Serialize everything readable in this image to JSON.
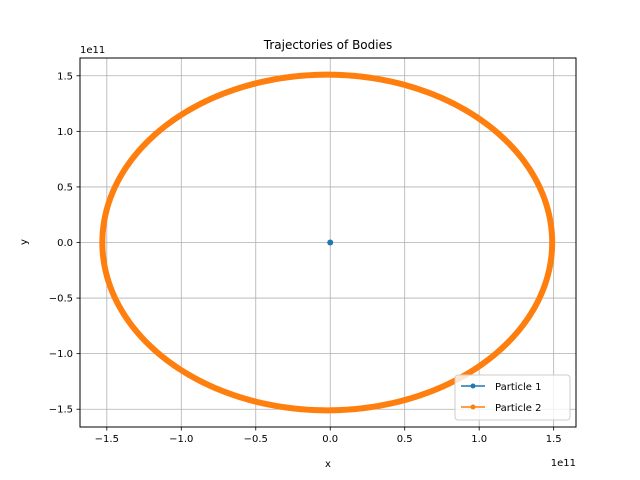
{
  "chart_data": {
    "type": "line",
    "title": "Trajectories of Bodies",
    "xlabel": "x",
    "ylabel": "y",
    "x_offset_label": "1e11",
    "y_offset_label": "1e11",
    "xlim": [
      -168000000000.0,
      165000000000.0
    ],
    "ylim": [
      -166000000000.0,
      166000000000.0
    ],
    "xticks": [
      -150000000000.0,
      -100000000000.0,
      -50000000000.0,
      0.0,
      50000000000.0,
      100000000000.0,
      150000000000.0
    ],
    "xtick_labels": [
      "−1.5",
      "−1.0",
      "−0.5",
      "0.0",
      "0.5",
      "1.0",
      "1.5"
    ],
    "yticks": [
      -150000000000.0,
      -100000000000.0,
      -50000000000.0,
      0.0,
      50000000000.0,
      100000000000.0,
      150000000000.0
    ],
    "ytick_labels": [
      "−1.5",
      "−1.0",
      "−0.5",
      "0.0",
      "0.5",
      "1.0",
      "1.5"
    ],
    "grid": true,
    "legend_position": "bottom-right",
    "series": [
      {
        "name": "Particle 1",
        "color": "#1f77b4",
        "marker": "circle",
        "x": [
          0.0
        ],
        "y": [
          0.0
        ]
      },
      {
        "name": "Particle 2",
        "color": "#ff7f0e",
        "marker": "circle",
        "shape": "ellipse",
        "center": [
          -2000000000.0,
          0.0
        ],
        "semi_axis_x": 151000000000.0,
        "semi_axis_y": 151000000000.0
      }
    ]
  }
}
